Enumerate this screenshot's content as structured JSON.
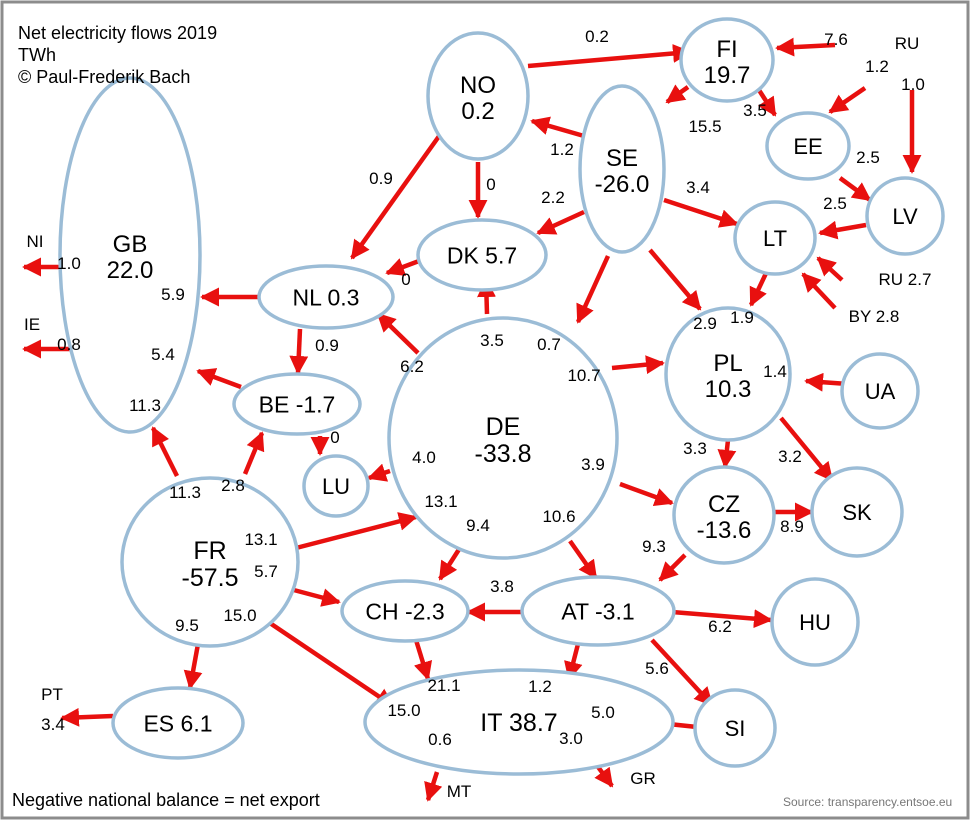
{
  "header": {
    "title": "Net electricity flows 2019",
    "unit": "TWh",
    "credit": "© Paul-Frederik Bach"
  },
  "footer": {
    "note": "Negative national balance = net export",
    "source": "Source: transparency.entsoe.eu"
  },
  "colors": {
    "node_border": "#9bbcd6",
    "arrow": "#e8100f",
    "frame": "#8c8c8c"
  },
  "nodes": [
    {
      "id": "NO",
      "code": "NO",
      "balance": "0.2"
    },
    {
      "id": "FI",
      "code": "FI",
      "balance": "19.7"
    },
    {
      "id": "SE",
      "code": "SE",
      "balance": "-26.0"
    },
    {
      "id": "EE",
      "code": "EE",
      "balance": ""
    },
    {
      "id": "LV",
      "code": "LV",
      "balance": ""
    },
    {
      "id": "LT",
      "code": "LT",
      "balance": ""
    },
    {
      "id": "GB",
      "code": "GB",
      "balance": "22.0"
    },
    {
      "id": "DK",
      "code": "DK",
      "balance": "5.7"
    },
    {
      "id": "NL",
      "code": "NL",
      "balance": "0.3"
    },
    {
      "id": "BE",
      "code": "BE",
      "balance": "-1.7"
    },
    {
      "id": "LU",
      "code": "LU",
      "balance": ""
    },
    {
      "id": "DE",
      "code": "DE",
      "balance": "-33.8"
    },
    {
      "id": "PL",
      "code": "PL",
      "balance": "10.3"
    },
    {
      "id": "UA",
      "code": "UA",
      "balance": ""
    },
    {
      "id": "CZ",
      "code": "CZ",
      "balance": "-13.6"
    },
    {
      "id": "SK",
      "code": "SK",
      "balance": ""
    },
    {
      "id": "FR",
      "code": "FR",
      "balance": "-57.5"
    },
    {
      "id": "CH",
      "code": "CH",
      "balance": "-2.3"
    },
    {
      "id": "AT",
      "code": "AT",
      "balance": "-3.1"
    },
    {
      "id": "HU",
      "code": "HU",
      "balance": ""
    },
    {
      "id": "SI",
      "code": "SI",
      "balance": ""
    },
    {
      "id": "IT",
      "code": "IT",
      "balance": "38.7"
    },
    {
      "id": "ES",
      "code": "ES",
      "balance": "6.1"
    }
  ],
  "external_labels": [
    "RU",
    "RU 2.7",
    "BY 2.8",
    "NI",
    "IE",
    "PT",
    "3.4",
    "MT",
    "GR"
  ],
  "flows": [
    {
      "from": "NO",
      "to": "FI",
      "value": "0.2"
    },
    {
      "from": "RU",
      "to": "FI",
      "value": "7.6"
    },
    {
      "from": "RU",
      "to": "EE",
      "value": "1.2"
    },
    {
      "from": "RU",
      "to": "LV",
      "value": "1.0"
    },
    {
      "from": "SE",
      "to": "FI",
      "value": "15.5"
    },
    {
      "from": "FI",
      "to": "EE",
      "value": "3.5"
    },
    {
      "from": "SE",
      "to": "NO",
      "value": "1.2"
    },
    {
      "from": "EE",
      "to": "LV",
      "value": "2.5"
    },
    {
      "from": "LV",
      "to": "LT",
      "value": "2.5"
    },
    {
      "from": "SE",
      "to": "LT",
      "value": "3.4"
    },
    {
      "from": "SE",
      "to": "DK",
      "value": "2.2"
    },
    {
      "from": "NO",
      "to": "DK",
      "value": "0"
    },
    {
      "from": "NO",
      "to": "NL",
      "value": "0.9"
    },
    {
      "from": "RU",
      "to": "LT",
      "value": "2.7"
    },
    {
      "from": "BY",
      "to": "LT",
      "value": "2.8"
    },
    {
      "from": "DK",
      "to": "NL",
      "value": "0"
    },
    {
      "from": "GB",
      "to": "NI",
      "value": "1.0"
    },
    {
      "from": "GB",
      "to": "IE",
      "value": "0.8"
    },
    {
      "from": "NL",
      "to": "GB",
      "value": "5.9"
    },
    {
      "from": "BE",
      "to": "GB",
      "value": "5.4"
    },
    {
      "from": "FR",
      "to": "GB",
      "value": "11.3"
    },
    {
      "from": "NL",
      "to": "BE",
      "value": "0.9"
    },
    {
      "from": "DE",
      "to": "NL",
      "value": "6.2"
    },
    {
      "from": "DE",
      "to": "DK",
      "value": "3.5"
    },
    {
      "from": "SE",
      "to": "DE",
      "value": "0.7"
    },
    {
      "from": "DE",
      "to": "PL",
      "value": "10.7"
    },
    {
      "from": "LT",
      "to": "PL",
      "value": "2.9"
    },
    {
      "from": "SE",
      "to": "PL",
      "value": "1.9"
    },
    {
      "from": "UA",
      "to": "PL",
      "value": "1.4"
    },
    {
      "from": "BE",
      "to": "LU",
      "value": "0"
    },
    {
      "from": "DE",
      "to": "LU",
      "value": "4.0"
    },
    {
      "from": "FR",
      "to": "BE",
      "value": "2.8"
    },
    {
      "from": "DE",
      "to": "CZ",
      "value": "3.9"
    },
    {
      "from": "PL",
      "to": "CZ",
      "value": "3.3"
    },
    {
      "from": "PL",
      "to": "SK",
      "value": "3.2"
    },
    {
      "from": "CZ",
      "to": "SK",
      "value": "8.9"
    },
    {
      "from": "FR",
      "to": "DE",
      "value": "13.1"
    },
    {
      "from": "DE",
      "to": "CH",
      "value": "9.4"
    },
    {
      "from": "DE",
      "to": "AT",
      "value": "10.6"
    },
    {
      "from": "CZ",
      "to": "AT",
      "value": "9.3"
    },
    {
      "from": "FR",
      "to": "CH",
      "value": "5.7"
    },
    {
      "from": "AT",
      "to": "CH",
      "value": "3.8"
    },
    {
      "from": "AT",
      "to": "HU",
      "value": "6.2"
    },
    {
      "from": "AT",
      "to": "SI",
      "value": "5.6"
    },
    {
      "from": "CH",
      "to": "IT",
      "value": "21.1"
    },
    {
      "from": "AT",
      "to": "IT",
      "value": "1.2"
    },
    {
      "from": "FR",
      "to": "IT",
      "value": "15.0"
    },
    {
      "from": "SI",
      "to": "IT",
      "value": "5.0"
    },
    {
      "from": "FR",
      "to": "ES",
      "value": "9.5"
    },
    {
      "from": "ES",
      "to": "PT",
      "value": "3.4"
    },
    {
      "from": "IT",
      "to": "MT",
      "value": "0.6"
    },
    {
      "from": "IT",
      "to": "GR",
      "value": "3.0"
    }
  ]
}
